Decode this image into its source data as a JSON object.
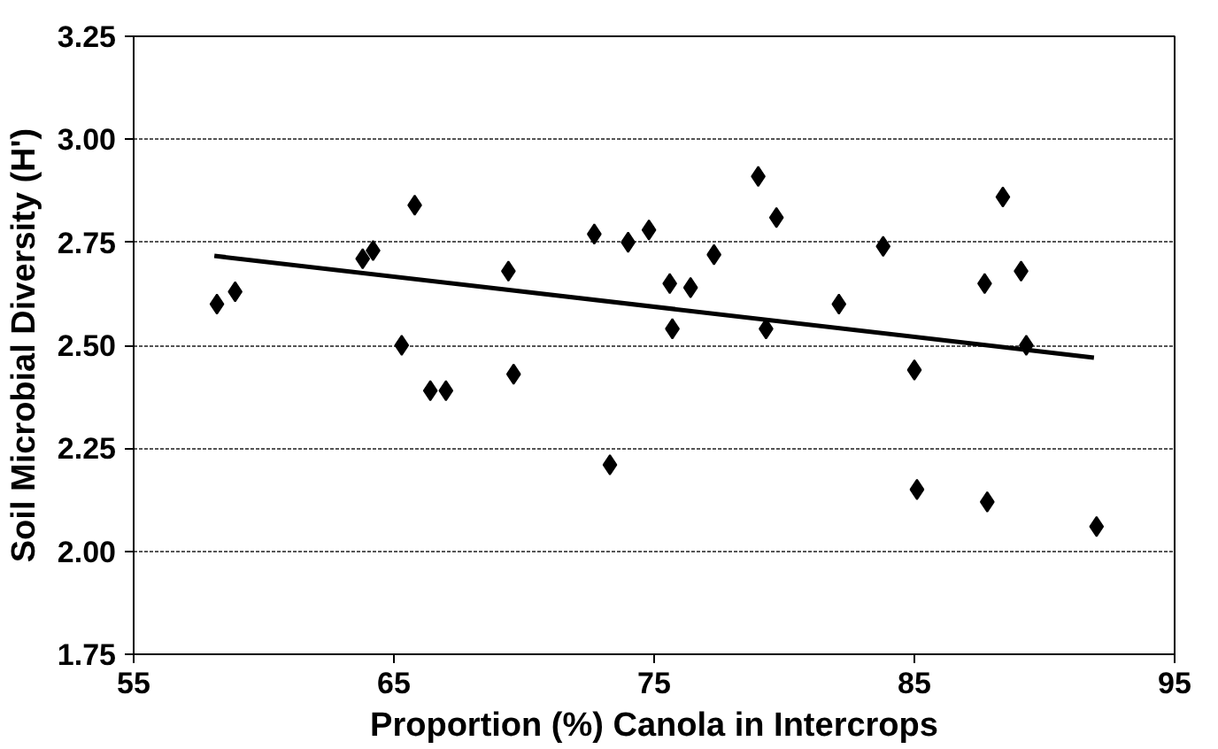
{
  "chart_data": {
    "type": "scatter",
    "xlabel": "Proportion (%) Canola in Intercrops",
    "ylabel": "Soil Microbial Diversity (H')",
    "xlim": [
      55,
      95
    ],
    "xticks": [
      55,
      65,
      75,
      85,
      95
    ],
    "ylim": [
      1.75,
      3.25
    ],
    "yticks": [
      {
        "value": 1.75,
        "label": "1.75"
      },
      {
        "value": 2.0,
        "label": "2.00"
      },
      {
        "value": 2.25,
        "label": "2.25"
      },
      {
        "value": 2.5,
        "label": "2.50"
      },
      {
        "value": 2.75,
        "label": "2.75"
      },
      {
        "value": 3.0,
        "label": "3.00"
      },
      {
        "value": 3.25,
        "label": "3.25"
      }
    ],
    "grid": "y",
    "marker": "diamond",
    "series": [
      {
        "color": "#000000",
        "x": [
          58.2,
          58.9,
          63.8,
          64.2,
          65.3,
          65.8,
          66.4,
          67.0,
          69.4,
          69.6,
          72.7,
          73.3,
          74.0,
          74.8,
          75.6,
          75.7,
          76.4,
          77.3,
          79.0,
          79.3,
          79.7,
          82.1,
          83.8,
          85.0,
          85.1,
          87.7,
          87.8,
          88.4,
          89.1,
          89.3,
          92.0
        ],
        "values": [
          2.6,
          2.63,
          2.71,
          2.73,
          2.5,
          2.84,
          2.39,
          2.39,
          2.68,
          2.43,
          2.77,
          2.21,
          2.75,
          2.78,
          2.65,
          2.54,
          2.64,
          2.72,
          2.91,
          2.54,
          2.81,
          2.6,
          2.74,
          2.44,
          2.15,
          2.65,
          2.12,
          2.86,
          2.68,
          2.5,
          2.06
        ]
      },
      {
        "type": "line",
        "color": "#000000",
        "marker": "none",
        "x": [
          58.1,
          91.9
        ],
        "values": [
          2.717,
          2.47
        ]
      }
    ]
  }
}
